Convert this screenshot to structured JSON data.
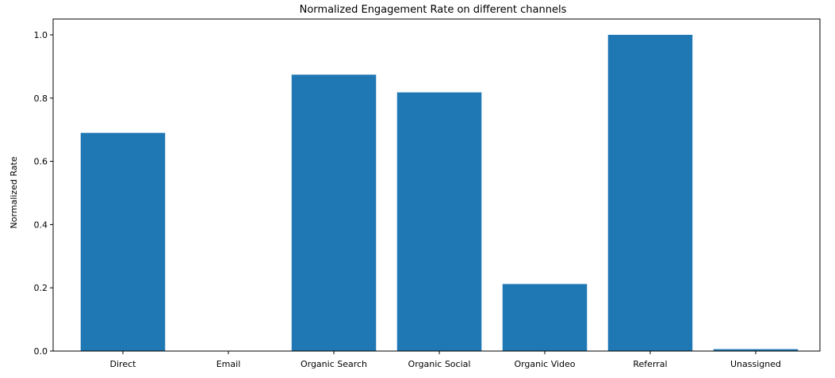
{
  "chart_data": {
    "type": "bar",
    "title": "Normalized Engagement Rate on different channels",
    "xlabel": "",
    "ylabel": "Normalized Rate",
    "categories": [
      "Direct",
      "Email",
      "Organic Search",
      "Organic Social",
      "Organic Video",
      "Referral",
      "Unassigned"
    ],
    "values": [
      0.69,
      0.0,
      0.874,
      0.818,
      0.212,
      1.0,
      0.006
    ],
    "ylim": [
      0,
      1.05
    ],
    "yticks": [
      0.0,
      0.2,
      0.4,
      0.6,
      0.8,
      1.0
    ],
    "ytick_labels": [
      "0.0",
      "0.2",
      "0.4",
      "0.6",
      "0.8",
      "1.0"
    ],
    "grid": false,
    "bar_color": "#1f77b4"
  }
}
